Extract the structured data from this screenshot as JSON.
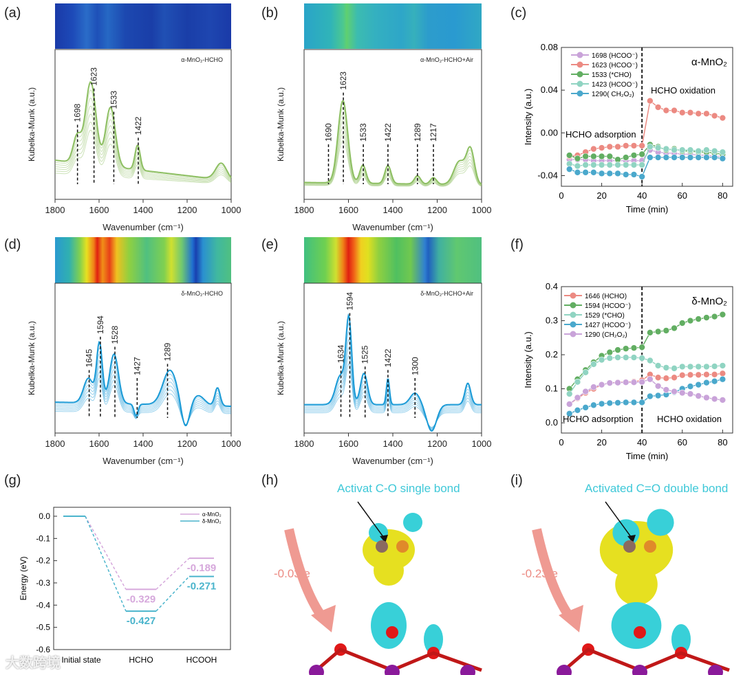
{
  "panel_labels": [
    "(a)",
    "(b)",
    "(c)",
    "(d)",
    "(e)",
    "(f)",
    "(g)",
    "(h)",
    "(i)"
  ],
  "watermark": "大数跨境",
  "chart_data": [
    {
      "id": "a",
      "type": "line",
      "title": "α-MnO₂-HCHO",
      "xlabel": "Wavenumber (cm⁻¹)",
      "ylabel": "Kubelka-Munk (a.u.)",
      "xlim": [
        1800,
        1000
      ],
      "xticks": [
        1800,
        1600,
        1400,
        1200,
        1000
      ],
      "peak_labels": [
        1698,
        1623,
        1533,
        1422
      ],
      "color": "#8dbf62",
      "n_curves": 7,
      "baseline": [
        0.35,
        0.1
      ],
      "components": [
        [
          1638,
          1.0,
          24
        ],
        [
          1548,
          0.72,
          22
        ],
        [
          1700,
          0.32,
          18
        ],
        [
          1425,
          0.3,
          12
        ],
        [
          1045,
          0.2,
          25
        ]
      ]
    },
    {
      "id": "b",
      "type": "line",
      "title": "α-MnO₂-HCHO+Air",
      "xlabel": "Wavenumber (cm⁻¹)",
      "ylabel": "Kubelka-Munk (a.u.)",
      "xlim": [
        1800,
        1000
      ],
      "xticks": [
        1800,
        1600,
        1400,
        1200,
        1000
      ],
      "peak_labels": [
        1690,
        1623
      ],
      "peak_labels2": [
        1533,
        1422,
        1289,
        1217
      ],
      "color": "#8dbf62",
      "n_curves": 7,
      "baseline": [
        0.08,
        0.05
      ],
      "components": [
        [
          1625,
          1.0,
          22
        ],
        [
          1535,
          0.22,
          14
        ],
        [
          1422,
          0.22,
          14
        ],
        [
          1289,
          0.1,
          14
        ],
        [
          1217,
          0.08,
          14
        ],
        [
          1100,
          0.28,
          25
        ],
        [
          1050,
          0.42,
          18
        ]
      ]
    },
    {
      "id": "c",
      "type": "line",
      "title": "α-MnO₂",
      "xlabel": "Time (min)",
      "ylabel": "Intensity (a.u.)",
      "xlim": [
        0,
        85
      ],
      "ylim": [
        -0.05,
        0.08
      ],
      "xticks": [
        0,
        20,
        40,
        60,
        80
      ],
      "yticks": [
        "0.08",
        "0.04",
        "0.00",
        "-0.04"
      ],
      "annotations": [
        "HCHO adsorption",
        "HCHO oxidation"
      ],
      "divider_x": 40,
      "x": [
        4,
        8,
        12,
        16,
        20,
        24,
        28,
        32,
        36,
        40,
        44,
        48,
        52,
        56,
        60,
        64,
        68,
        72,
        76,
        80
      ],
      "series": [
        {
          "name": "1698 (HCOO⁻)",
          "color": "#c9a3d9",
          "values": [
            -0.025,
            -0.025,
            -0.025,
            -0.026,
            -0.026,
            -0.026,
            -0.026,
            -0.026,
            -0.026,
            -0.026,
            -0.016,
            -0.018,
            -0.019,
            -0.019,
            -0.02,
            -0.02,
            -0.021,
            -0.021,
            -0.022,
            -0.022
          ]
        },
        {
          "name": "1623 (HCOO⁻)",
          "color": "#ec8a82",
          "values": [
            -0.022,
            -0.021,
            -0.018,
            -0.015,
            -0.014,
            -0.013,
            -0.013,
            -0.012,
            -0.012,
            -0.012,
            0.03,
            0.024,
            0.021,
            0.021,
            0.019,
            0.019,
            0.018,
            0.018,
            0.016,
            0.014
          ]
        },
        {
          "name": "1533 (*CHO)",
          "color": "#62ae62",
          "values": [
            -0.021,
            -0.024,
            -0.022,
            -0.022,
            -0.022,
            -0.022,
            -0.025,
            -0.023,
            -0.021,
            -0.02,
            -0.011,
            -0.013,
            -0.016,
            -0.015,
            -0.017,
            -0.017,
            -0.018,
            -0.018,
            -0.019,
            -0.02
          ]
        },
        {
          "name": "1423 (HCOO⁻)",
          "color": "#90d4c2",
          "values": [
            -0.029,
            -0.031,
            -0.03,
            -0.03,
            -0.03,
            -0.03,
            -0.03,
            -0.03,
            -0.03,
            -0.03,
            -0.013,
            -0.014,
            -0.015,
            -0.016,
            -0.016,
            -0.016,
            -0.017,
            -0.016,
            -0.017,
            -0.018
          ]
        },
        {
          "name": "1290( CH₂O₂)",
          "color": "#4aa8cc",
          "values": [
            -0.034,
            -0.037,
            -0.037,
            -0.037,
            -0.038,
            -0.038,
            -0.038,
            -0.039,
            -0.039,
            -0.041,
            -0.023,
            -0.023,
            -0.023,
            -0.023,
            -0.023,
            -0.023,
            -0.023,
            -0.023,
            -0.023,
            -0.024
          ]
        }
      ]
    },
    {
      "id": "d",
      "type": "line",
      "title": "δ-MnO₂-HCHO",
      "xlabel": "Wavenumber (cm⁻¹)",
      "ylabel": "Kubelka-Munk (a.u.)",
      "xlim": [
        1800,
        1000
      ],
      "xticks": [
        1800,
        1600,
        1400,
        1200,
        1000
      ],
      "peak_labels": [
        1645,
        1594,
        1528,
        1427,
        1289
      ],
      "color": "#1a9ad6",
      "n_curves": 7,
      "baseline": [
        0.25,
        0.2
      ],
      "components": [
        [
          1648,
          0.3,
          22
        ],
        [
          1598,
          0.72,
          13
        ],
        [
          1532,
          0.6,
          20
        ],
        [
          1432,
          -0.14,
          9
        ],
        [
          1278,
          0.42,
          32
        ],
        [
          1208,
          -0.3,
          18
        ],
        [
          1150,
          0.12,
          28
        ],
        [
          1062,
          0.22,
          12
        ]
      ]
    },
    {
      "id": "e",
      "type": "line",
      "title": "δ-MnO₂-HCHO+Air",
      "xlabel": "Wavenumber (cm⁻¹)",
      "ylabel": "Kubelka-Munk (a.u.)",
      "xlim": [
        1800,
        1000
      ],
      "xticks": [
        1800,
        1600,
        1400,
        1200,
        1000
      ],
      "peak_labels": [
        1634,
        1525,
        1594,
        1422,
        1300
      ],
      "color": "#1a9ad6",
      "n_curves": 7,
      "baseline": [
        0.22,
        0.22
      ],
      "components": [
        [
          1636,
          0.35,
          22
        ],
        [
          1598,
          1.0,
          13
        ],
        [
          1530,
          0.38,
          16
        ],
        [
          1422,
          0.32,
          7
        ],
        [
          1300,
          0.14,
          22
        ],
        [
          1225,
          -0.32,
          22
        ],
        [
          1062,
          0.26,
          13
        ]
      ]
    },
    {
      "id": "f",
      "type": "line",
      "title": "δ-MnO₂",
      "xlabel": "Time (min)",
      "ylabel": "Intensity (a.u.)",
      "xlim": [
        0,
        85
      ],
      "ylim": [
        -0.03,
        0.4
      ],
      "xticks": [
        0,
        20,
        40,
        60,
        80
      ],
      "yticks": [
        "0.4",
        "0.3",
        "0.2",
        "0.1",
        "0.0"
      ],
      "annotations": [
        "HCHO adsorption",
        "HCHO oxidation"
      ],
      "divider_x": 40,
      "x": [
        4,
        8,
        12,
        16,
        20,
        24,
        28,
        32,
        36,
        40,
        44,
        48,
        52,
        56,
        60,
        64,
        68,
        72,
        76,
        80
      ],
      "series": [
        {
          "name": "1646 (HCHO)",
          "color": "#ec8a82",
          "values": [
            0.055,
            0.072,
            0.088,
            0.1,
            0.112,
            0.117,
            0.119,
            0.12,
            0.121,
            0.125,
            0.142,
            0.133,
            0.131,
            0.133,
            0.14,
            0.141,
            0.141,
            0.142,
            0.142,
            0.145
          ]
        },
        {
          "name": "1594 (HCOO⁻)",
          "color": "#62ae62",
          "values": [
            0.1,
            0.128,
            0.155,
            0.178,
            0.197,
            0.207,
            0.214,
            0.218,
            0.22,
            0.222,
            0.265,
            0.268,
            0.271,
            0.278,
            0.293,
            0.3,
            0.305,
            0.309,
            0.312,
            0.318
          ]
        },
        {
          "name": "1529 (*CHO)",
          "color": "#90d4c2",
          "values": [
            0.085,
            0.12,
            0.148,
            0.172,
            0.185,
            0.19,
            0.192,
            0.192,
            0.192,
            0.19,
            0.183,
            0.168,
            0.162,
            0.16,
            0.165,
            0.165,
            0.165,
            0.165,
            0.166,
            0.168
          ]
        },
        {
          "name": "1427 (HCOO⁻)",
          "color": "#4aa8cc",
          "values": [
            0.027,
            0.037,
            0.045,
            0.052,
            0.056,
            0.058,
            0.059,
            0.06,
            0.06,
            0.06,
            0.078,
            0.08,
            0.083,
            0.09,
            0.1,
            0.107,
            0.112,
            0.118,
            0.122,
            0.128
          ]
        },
        {
          "name": "1290 (CH₂O₂)",
          "color": "#c9a3d9",
          "values": [
            0.055,
            0.074,
            0.092,
            0.105,
            0.112,
            0.117,
            0.118,
            0.119,
            0.119,
            0.12,
            0.128,
            0.108,
            0.097,
            0.092,
            0.088,
            0.085,
            0.079,
            0.074,
            0.07,
            0.067
          ]
        }
      ]
    },
    {
      "id": "g",
      "type": "line",
      "xlabel": "",
      "ylabel": "Energy (eV)",
      "ylim": [
        -0.6,
        0.05
      ],
      "yticks": [
        "0.0",
        "-0.1",
        "-0.2",
        "-0.3",
        "-0.4",
        "-0.5",
        "-0.6"
      ],
      "categories": [
        "Initial state",
        "HCHO",
        "HCOOH"
      ],
      "series": [
        {
          "name": "α-MnO₂",
          "color": "#d6a8dc",
          "values": [
            0,
            -0.329,
            -0.189
          ],
          "labels": [
            "",
            "-0.329",
            "-0.189"
          ]
        },
        {
          "name": "δ-MnO₂",
          "color": "#4ab4cc",
          "values": [
            0,
            -0.427,
            -0.271
          ],
          "labels": [
            "",
            "-0.427",
            "-0.271"
          ]
        }
      ]
    }
  ],
  "panel_h": {
    "title": "Activat C-O single bond",
    "charge": "-0.03 e"
  },
  "panel_i": {
    "title": "Activated C=O double bond",
    "charge": "-0.23 e"
  }
}
